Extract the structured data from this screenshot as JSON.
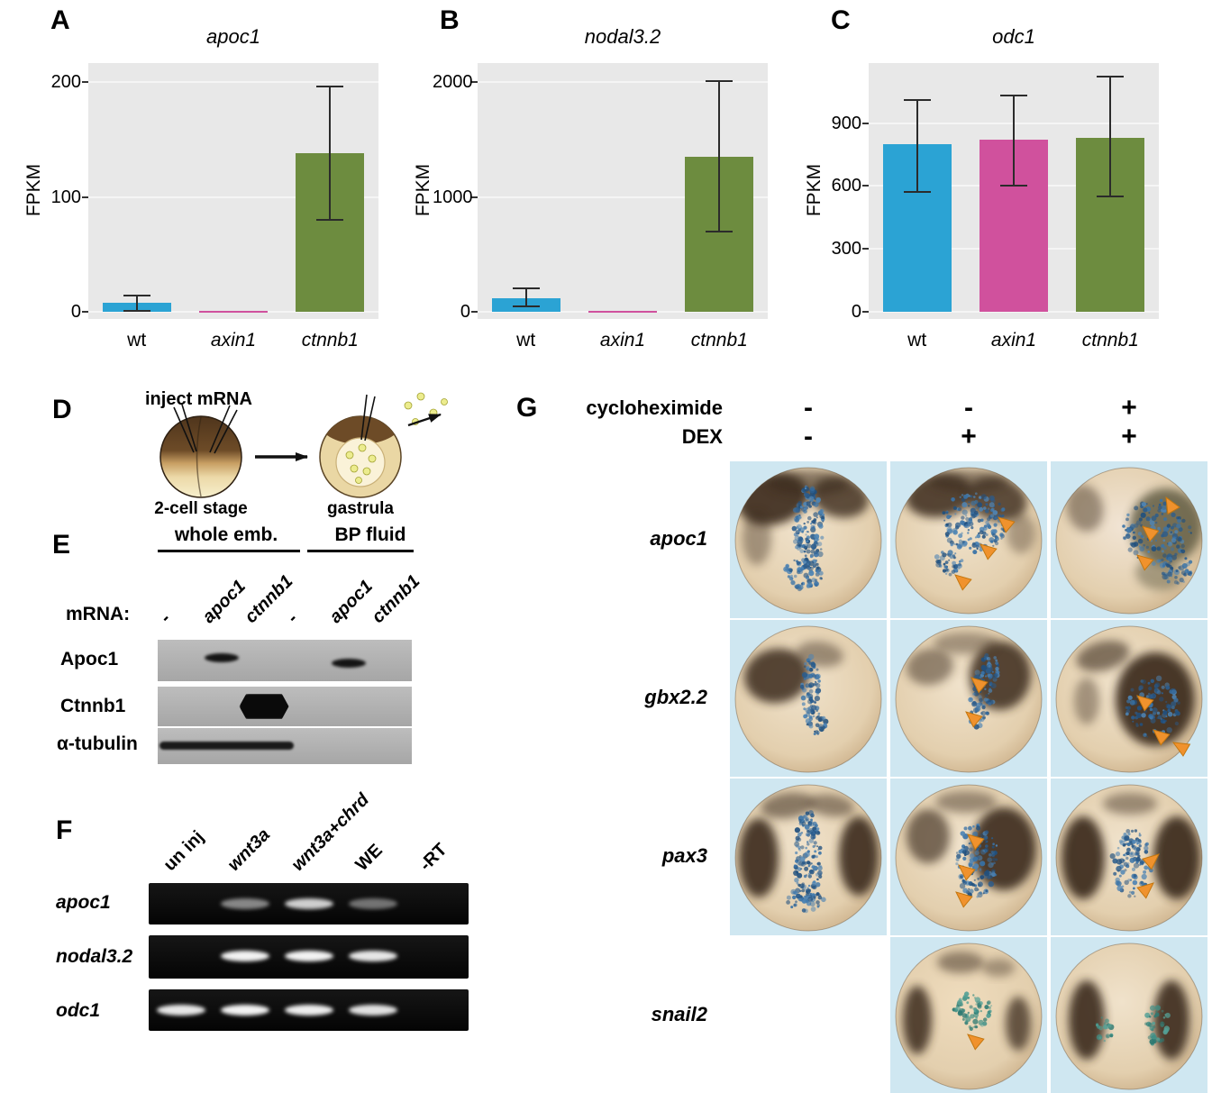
{
  "chart_data": [
    {
      "type": "bar",
      "panel": "A",
      "title": "apoc1",
      "ylabel": "FPKM",
      "categories": [
        "wt",
        "axin1",
        "ctnnb1"
      ],
      "categories_italic": [
        false,
        true,
        true
      ],
      "values": [
        8,
        1,
        138
      ],
      "error_low": [
        1,
        0.5,
        80
      ],
      "error_high": [
        14,
        1.5,
        196
      ],
      "yticks": [
        0,
        100,
        200
      ],
      "ylim": [
        0,
        212
      ],
      "bar_colors": [
        "#2ba3d4",
        "#d0519d",
        "#6d8c3f"
      ],
      "plot_bg": "#e8e8e8",
      "grid": true,
      "legend": "none"
    },
    {
      "type": "bar",
      "panel": "B",
      "title": "nodal3.2",
      "ylabel": "FPKM",
      "categories": [
        "wt",
        "axin1",
        "ctnnb1"
      ],
      "categories_italic": [
        false,
        true,
        true
      ],
      "values": [
        120,
        8,
        1350
      ],
      "error_low": [
        50,
        4,
        700
      ],
      "error_high": [
        205,
        12,
        2010
      ],
      "yticks": [
        0,
        1000,
        2000
      ],
      "ylim": [
        0,
        2120
      ],
      "bar_colors": [
        "#2ba3d4",
        "#d0519d",
        "#6d8c3f"
      ],
      "plot_bg": "#e8e8e8",
      "grid": true,
      "legend": "none"
    },
    {
      "type": "bar",
      "panel": "C",
      "title": "odc1",
      "ylabel": "FPKM",
      "categories": [
        "wt",
        "axin1",
        "ctnnb1"
      ],
      "categories_italic": [
        false,
        true,
        true
      ],
      "values": [
        800,
        820,
        830
      ],
      "error_low": [
        570,
        600,
        550
      ],
      "error_high": [
        1010,
        1030,
        1120
      ],
      "yticks": [
        0,
        300,
        600,
        900
      ],
      "ylim": [
        0,
        1160
      ],
      "bar_colors": [
        "#2ba3d4",
        "#d0519d",
        "#6d8c3f"
      ],
      "plot_bg": "#e8e8e8",
      "grid": true,
      "legend": "none"
    }
  ],
  "panel_d": {
    "letter": "D",
    "inject_label": "inject mRNA",
    "stage_left": "2-cell stage",
    "stage_right": "gastrula"
  },
  "panel_e": {
    "letter": "E",
    "group_left": "whole emb.",
    "group_right": "BP fluid",
    "mrna_label": "mRNA:",
    "lanes": [
      {
        "label": "-",
        "italic": false
      },
      {
        "label": "apoc1",
        "italic": true
      },
      {
        "label": "ctnnb1",
        "italic": true
      },
      {
        "label": "-",
        "italic": false
      },
      {
        "label": "apoc1",
        "italic": true
      },
      {
        "label": "ctnnb1",
        "italic": true
      }
    ],
    "rows": [
      "Apoc1",
      "Ctnnb1",
      "α-tubulin"
    ],
    "bands": [
      [
        0,
        1,
        0,
        0,
        1,
        0
      ],
      [
        0,
        0,
        1,
        0,
        0,
        0
      ],
      [
        1,
        1,
        1,
        0,
        0,
        0
      ]
    ]
  },
  "panel_f": {
    "letter": "F",
    "lanes": [
      {
        "label": "un inj",
        "italic": false
      },
      {
        "label": "wnt3a",
        "italic": true
      },
      {
        "label": "wnt3a+chrd",
        "italic": true
      },
      {
        "label": "WE",
        "italic": false
      },
      {
        "label": "-RT",
        "italic": false
      }
    ],
    "rows": [
      "apoc1",
      "nodal3.2",
      "odc1"
    ],
    "band_intensity": [
      [
        0,
        0.5,
        0.8,
        0.42,
        0
      ],
      [
        0,
        0.95,
        0.95,
        0.9,
        0
      ],
      [
        0.9,
        0.95,
        0.93,
        0.88,
        0
      ]
    ]
  },
  "panel_g": {
    "letter": "G",
    "treatments": [
      {
        "label": "cycloheximide",
        "values": [
          "-",
          "-",
          "+"
        ]
      },
      {
        "label": "DEX",
        "values": [
          "-",
          "+",
          "+"
        ]
      }
    ],
    "rows": [
      "apoc1",
      "gbx2.2",
      "pax3",
      "snail2"
    ],
    "grid": [
      [
        1,
        1,
        1
      ],
      [
        1,
        1,
        1
      ],
      [
        1,
        1,
        1
      ],
      [
        0,
        1,
        1
      ]
    ]
  },
  "colors": {
    "arrowhead": "#f0922d",
    "arrowhead_stroke": "#c4770f",
    "stain_blues": [
      "#2b5c8c",
      "#3a73a7",
      "#21507e",
      "#4e84b4"
    ],
    "stain_teals": [
      "#3f8f85",
      "#2f7a72",
      "#55a196"
    ],
    "embryo_bg": "#cfe7f1",
    "bar_blue": "#2ba3d4",
    "bar_magenta": "#d0519d",
    "bar_green": "#6d8c3f"
  }
}
